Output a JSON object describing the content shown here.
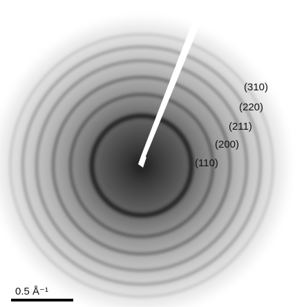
{
  "rings": [
    {
      "label": "(110)"
    },
    {
      "label": "(200)"
    },
    {
      "label": "(211)"
    },
    {
      "label": "(220)"
    },
    {
      "label": "(310)"
    }
  ],
  "scale_bar": {
    "label": "0.5 Å⁻¹"
  }
}
